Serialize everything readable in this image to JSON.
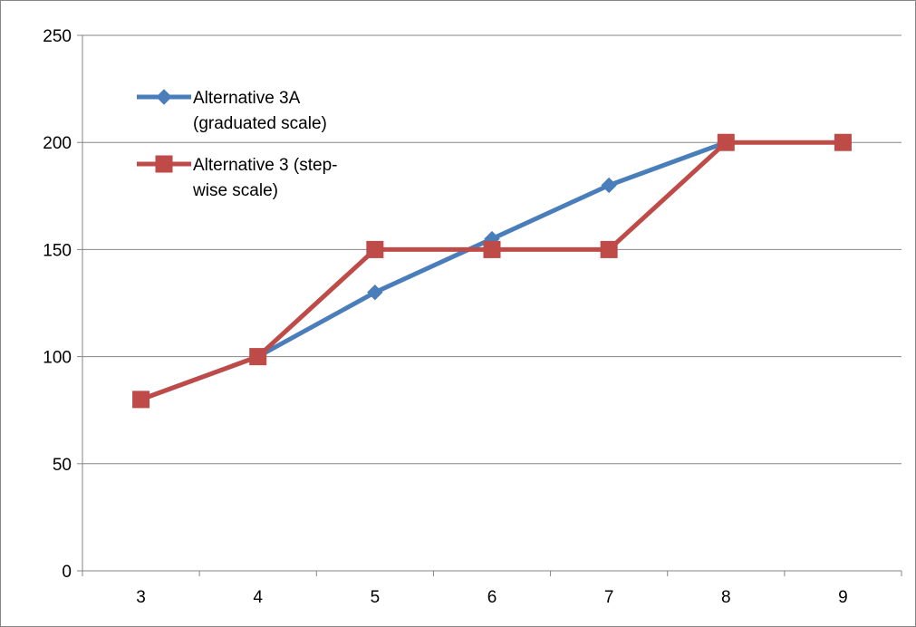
{
  "chart_data": {
    "type": "line",
    "x": [
      3,
      4,
      5,
      6,
      7,
      8,
      9
    ],
    "categories": [
      "3",
      "4",
      "5",
      "6",
      "7",
      "8",
      "9"
    ],
    "series": [
      {
        "name": "Alternative 3A (graduated scale)",
        "legend_lines": [
          "Alternative 3A",
          "(graduated scale)"
        ],
        "marker": "diamond",
        "color": "#4a7ebb",
        "values": [
          80,
          100,
          130,
          155,
          180,
          200,
          null
        ]
      },
      {
        "name": "Alternative 3 (step-wise scale)",
        "legend_lines": [
          "Alternative 3 (step-",
          "wise scale)"
        ],
        "marker": "square",
        "color": "#be4b48",
        "values": [
          80,
          100,
          150,
          150,
          150,
          200,
          200
        ]
      }
    ],
    "y_ticks": [
      "0",
      "50",
      "100",
      "150",
      "200",
      "250"
    ],
    "ylim": [
      0,
      250
    ],
    "grid": "horizontal",
    "legend_position": "top-left"
  }
}
